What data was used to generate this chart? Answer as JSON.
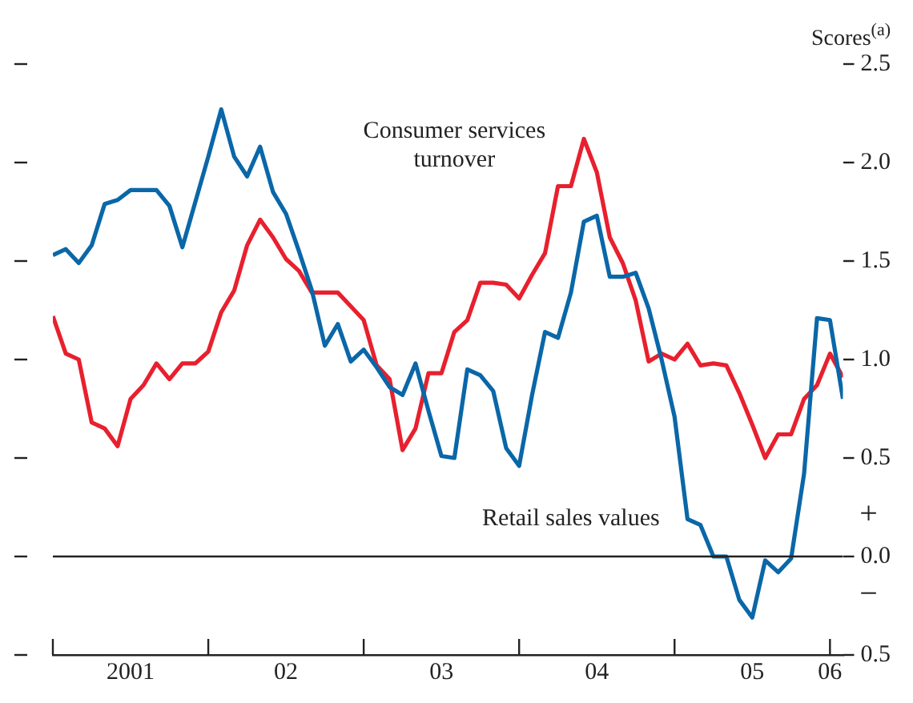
{
  "chart_data": {
    "type": "line",
    "ylabel": "Scores$^{(a)}$",
    "x": [
      "2001-01",
      "2001-02",
      "2001-03",
      "2001-04",
      "2001-05",
      "2001-06",
      "2001-07",
      "2001-08",
      "2001-09",
      "2001-10",
      "2001-11",
      "2001-12",
      "2002-01",
      "2002-02",
      "2002-03",
      "2002-04",
      "2002-05",
      "2002-06",
      "2002-07",
      "2002-08",
      "2002-09",
      "2002-10",
      "2002-11",
      "2002-12",
      "2003-01",
      "2003-02",
      "2003-03",
      "2003-04",
      "2003-05",
      "2003-06",
      "2003-07",
      "2003-08",
      "2003-09",
      "2003-10",
      "2003-11",
      "2003-12",
      "2004-01",
      "2004-02",
      "2004-03",
      "2004-04",
      "2004-05",
      "2004-06",
      "2004-07",
      "2004-08",
      "2004-09",
      "2004-10",
      "2004-11",
      "2004-12",
      "2005-01",
      "2005-02",
      "2005-03",
      "2005-04",
      "2005-05",
      "2005-06",
      "2005-07",
      "2005-08",
      "2005-09",
      "2005-10",
      "2005-11",
      "2005-12",
      "2006-01",
      "2006-02"
    ],
    "series": [
      {
        "name": "Retail sales values",
        "color": "#0a67a8",
        "values": [
          1.53,
          1.56,
          1.49,
          1.58,
          1.79,
          1.81,
          1.86,
          1.86,
          1.86,
          1.78,
          1.57,
          1.8,
          2.03,
          2.27,
          2.03,
          1.93,
          2.08,
          1.85,
          1.74,
          1.55,
          1.35,
          1.07,
          1.18,
          0.99,
          1.05,
          0.96,
          0.86,
          0.82,
          0.98,
          0.74,
          0.51,
          0.5,
          0.95,
          0.92,
          0.84,
          0.55,
          0.46,
          0.82,
          1.14,
          1.11,
          1.34,
          1.7,
          1.73,
          1.42,
          1.42,
          1.44,
          1.26,
          1.0,
          0.71,
          0.19,
          0.16,
          0.0,
          0.0,
          -0.22,
          -0.31,
          -0.02,
          -0.08,
          -0.01,
          0.42,
          1.21,
          1.2,
          0.8
        ]
      },
      {
        "name": "Consumer services turnover",
        "color": "#e8202e",
        "values": [
          1.22,
          1.03,
          1.0,
          0.68,
          0.65,
          0.56,
          0.8,
          0.87,
          0.98,
          0.9,
          0.98,
          0.98,
          1.04,
          1.24,
          1.35,
          1.58,
          1.71,
          1.62,
          1.51,
          1.45,
          1.34,
          1.34,
          1.34,
          1.27,
          1.2,
          0.97,
          0.9,
          0.54,
          0.65,
          0.93,
          0.93,
          1.14,
          1.2,
          1.39,
          1.39,
          1.38,
          1.31,
          1.43,
          1.54,
          1.88,
          1.88,
          2.12,
          1.95,
          1.62,
          1.49,
          1.3,
          0.99,
          1.03,
          1.0,
          1.08,
          0.97,
          0.98,
          0.97,
          0.83,
          0.67,
          0.5,
          0.62,
          0.62,
          0.8,
          0.87,
          1.03,
          0.91
        ]
      }
    ],
    "xlim": [
      "2001-01",
      "2006-02"
    ],
    "xticks": [
      {
        "value": "2001-01",
        "label": null
      },
      {
        "value": "2001-07",
        "label": "2001"
      },
      {
        "value": "2002-01",
        "label": null
      },
      {
        "value": "2002-07",
        "label": "02"
      },
      {
        "value": "2003-01",
        "label": null
      },
      {
        "value": "2003-07",
        "label": "03"
      },
      {
        "value": "2004-01",
        "label": null
      },
      {
        "value": "2004-07",
        "label": "04"
      },
      {
        "value": "2005-01",
        "label": null
      },
      {
        "value": "2005-07",
        "label": "05"
      },
      {
        "value": "2006-01",
        "label": "06"
      }
    ],
    "ylim": [
      -0.5,
      2.5
    ],
    "yticks": [
      {
        "value": -0.5,
        "label": "0.5"
      },
      {
        "value": 0,
        "label": "0.0"
      },
      {
        "value": 0.5,
        "label": "0.5"
      },
      {
        "value": 1,
        "label": "1.0"
      },
      {
        "value": 1.5,
        "label": "1.5"
      },
      {
        "value": 2,
        "label": "2.0"
      },
      {
        "value": 2.5,
        "label": "2.5"
      }
    ],
    "ref_lines": [
      {
        "axis": "y",
        "value": 0,
        "color": "#222222"
      }
    ],
    "annotations": [
      "+",
      "−"
    ],
    "grid": false,
    "legend": false,
    "marker": "none",
    "line_style": "solid"
  }
}
